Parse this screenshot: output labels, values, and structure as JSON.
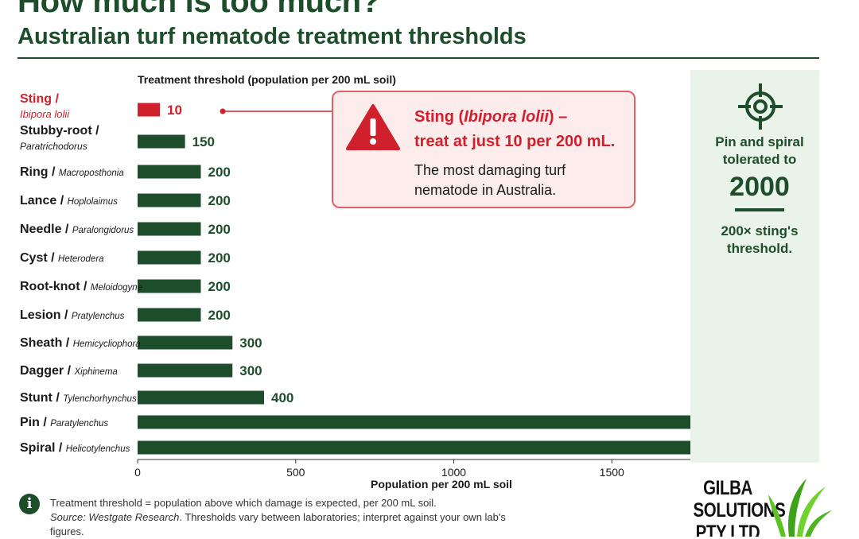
{
  "header": {
    "title": "How much is too much?",
    "subtitle": "Australian turf nematode treatment thresholds"
  },
  "colors": {
    "bar": "#1e4d2b",
    "highlight": "#d0202c",
    "panel": "#eaf3ea"
  },
  "chart_data": {
    "type": "bar",
    "orientation": "horizontal",
    "title": "Treatment threshold (population per 200 mL soil)",
    "xlabel": "Population per 200 mL soil",
    "xlim": [
      0,
      2000
    ],
    "xticks": [
      0,
      500,
      1000,
      1500
    ],
    "categories": [
      {
        "common": "Sting /",
        "genus": "Ibipora lolii"
      },
      {
        "common": "Stubby-root /",
        "genus": "Paratrichodorus"
      },
      {
        "common": "Ring /",
        "genus": "Macroposthonia"
      },
      {
        "common": "Lance /",
        "genus": "Hoplolaimus"
      },
      {
        "common": "Needle /",
        "genus": "Paralongidorus"
      },
      {
        "common": "Cyst /",
        "genus": "Heterodera"
      },
      {
        "common": "Root-knot /",
        "genus": "Meloidogyne"
      },
      {
        "common": "Lesion /",
        "genus": "Pratylenchus"
      },
      {
        "common": "Sheath /",
        "genus": "Hemicycliophora"
      },
      {
        "common": "Dagger /",
        "genus": "Xiphinema"
      },
      {
        "common": "Stunt /",
        "genus": "Tylenchorhynchus"
      },
      {
        "common": "Pin /",
        "genus": "Paratylenchus"
      },
      {
        "common": "Spiral /",
        "genus": "Helicotylenchus"
      }
    ],
    "values": [
      10,
      150,
      200,
      200,
      200,
      200,
      200,
      200,
      300,
      300,
      400,
      2000,
      2000
    ],
    "highlight_index": 0,
    "reference_line": 1750,
    "grid": false,
    "legend": "none"
  },
  "callout": {
    "head_a": "Sting (",
    "head_italic": "Ibipora lolii",
    "head_b": ") –",
    "head_line2": "treat at just 10 per 200 mL.",
    "body": "The most damaging turf nematode in Australia."
  },
  "side_panel": {
    "text1": "Pin and spiral tolerated to",
    "big_number": "2000",
    "text2": "200× sting's threshold."
  },
  "footer": {
    "line1": "Treatment threshold = population above which damage is expected, per 200 mL soil.",
    "source_label": "Source: Westgate Research",
    "line2": ". Thresholds vary between laboratories; interpret against your own lab's figures."
  },
  "logo": {
    "text": "GILBA SOLUTIONS PTY LTD"
  }
}
